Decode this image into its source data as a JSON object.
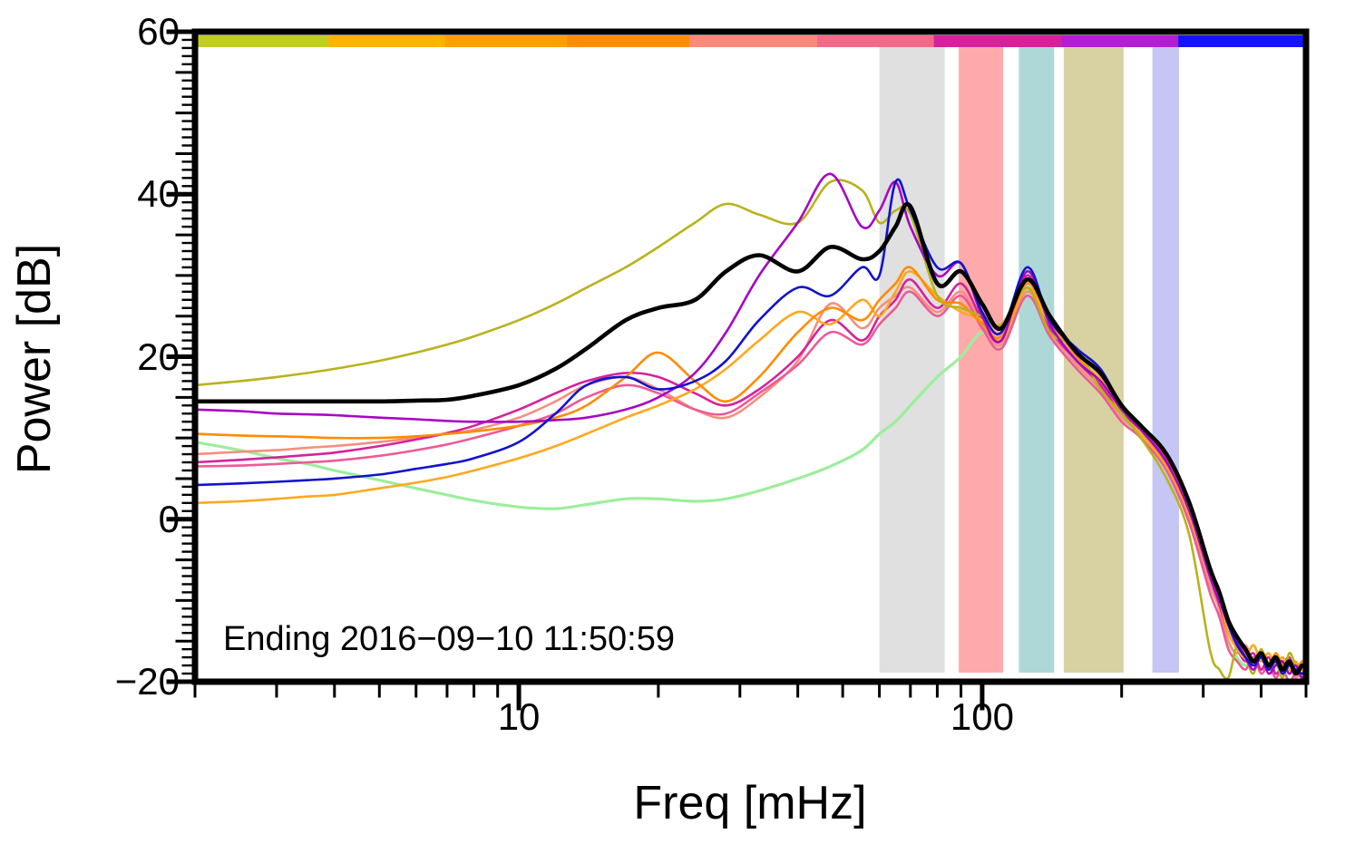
{
  "chart_data": {
    "type": "line",
    "title": "",
    "xlabel": "Freq [mHz]",
    "ylabel": "Power [dB]",
    "annotation": "Ending 2016−09−10 11:50:59",
    "x_scale": "log",
    "xlim": [
      2,
      500
    ],
    "ylim": [
      -20,
      60
    ],
    "grid": false,
    "legend": "none",
    "x_ticks": [
      {
        "value": 10,
        "label": "10"
      },
      {
        "value": 100,
        "label": "100"
      }
    ],
    "y_ticks": [
      {
        "value": 60,
        "label": "60"
      },
      {
        "value": 40,
        "label": "40"
      },
      {
        "value": 20,
        "label": "20"
      },
      {
        "value": 0,
        "label": "0"
      },
      {
        "value": -20,
        "label": "−20"
      }
    ],
    "bands": [
      {
        "from_mhz": 60,
        "to_mhz": 83,
        "color": "#e0e0e0"
      },
      {
        "from_mhz": 89,
        "to_mhz": 111,
        "color": "#ffaaaa"
      },
      {
        "from_mhz": 120,
        "to_mhz": 143,
        "color": "#aed8d8"
      },
      {
        "from_mhz": 150,
        "to_mhz": 202,
        "color": "#d8d2a2"
      },
      {
        "from_mhz": 233,
        "to_mhz": 266,
        "color": "#c6c6f4"
      }
    ],
    "colorbar_segments": [
      {
        "color": "#c2cd21",
        "from": 0.0,
        "to": 0.12
      },
      {
        "color": "#ffb300",
        "from": 0.12,
        "to": 0.225
      },
      {
        "color": "#ffa000",
        "from": 0.225,
        "to": 0.335
      },
      {
        "color": "#ff8d00",
        "from": 0.335,
        "to": 0.445
      },
      {
        "color": "#f9897b",
        "from": 0.445,
        "to": 0.56
      },
      {
        "color": "#f26a88",
        "from": 0.56,
        "to": 0.665
      },
      {
        "color": "#d6219c",
        "from": 0.665,
        "to": 0.78
      },
      {
        "color": "#b31ed2",
        "from": 0.78,
        "to": 0.885
      },
      {
        "color": "#1414ff",
        "from": 0.885,
        "to": 1.0
      }
    ],
    "x": [
      2,
      2.5,
      3,
      3.5,
      4,
      5,
      6,
      7,
      8,
      10,
      12,
      14,
      17,
      20,
      24,
      28,
      33,
      40,
      47,
      55,
      60,
      65,
      70,
      80,
      90,
      100,
      110,
      125,
      140,
      160,
      180,
      200,
      220,
      250,
      280,
      310,
      325,
      340,
      355,
      370,
      385,
      400,
      415,
      430,
      445,
      460,
      475,
      490,
      500
    ],
    "series": [
      {
        "name": "green",
        "color": "#9cee9c",
        "width": 3.2,
        "values": [
          9.5,
          8.5,
          7.5,
          6.8,
          6,
          4.8,
          3.8,
          3,
          2.3,
          1.5,
          1.3,
          1.8,
          2.5,
          2.5,
          2.2,
          2.5,
          3.5,
          5,
          6.5,
          8.5,
          10.5,
          12,
          14,
          17.5,
          20,
          23,
          21,
          27.5,
          23,
          19,
          16,
          12.5,
          10,
          6,
          0,
          -8,
          -11,
          -15,
          -17,
          -18,
          -17,
          -18.5,
          -17.5,
          -19,
          -18,
          -19,
          -18.5,
          -19.5,
          -19
        ]
      },
      {
        "name": "salmon",
        "color": "#f58f7f",
        "width": 2.6,
        "values": [
          8,
          8.3,
          8.5,
          8.8,
          9,
          9.5,
          10,
          10.5,
          11,
          12.5,
          14.5,
          16.5,
          17.5,
          16,
          13.5,
          12.5,
          15,
          19.5,
          26.5,
          23.5,
          26,
          27.5,
          28.5,
          25.5,
          28,
          24,
          21.5,
          28,
          23,
          19,
          16,
          12.5,
          10.5,
          6.5,
          0,
          -8,
          -11,
          -15,
          -16.5,
          -15.5,
          -17.5,
          -16.5,
          -18.5,
          -17.5,
          -19,
          -18,
          -19.5,
          -18.5,
          -19.5
        ]
      },
      {
        "name": "pink",
        "color": "#ee5a96",
        "width": 2.6,
        "values": [
          6.5,
          6.6,
          6.8,
          7,
          7.2,
          7.8,
          8.5,
          9.2,
          10,
          11.5,
          13,
          15,
          16.5,
          15.5,
          13.5,
          13,
          15.5,
          19,
          23,
          21.5,
          24,
          26,
          28,
          25,
          27.5,
          23.5,
          21,
          27.5,
          22.5,
          18.5,
          15.5,
          12,
          10,
          6,
          -0.5,
          -9,
          -12,
          -16,
          -17.5,
          -18.5,
          -17,
          -19,
          -18,
          -19.5,
          -18.5,
          -20,
          -19,
          -19.5,
          -19
        ]
      },
      {
        "name": "magenta",
        "color": "#d6219c",
        "width": 2.6,
        "values": [
          7,
          7.3,
          7.6,
          7.9,
          8.2,
          9,
          9.8,
          10.6,
          11.5,
          13.5,
          15.5,
          17,
          18,
          17.5,
          15.5,
          14,
          16,
          20,
          24.5,
          22,
          25,
          27,
          29.5,
          26,
          29,
          24.5,
          22,
          30,
          23.5,
          19.5,
          16.5,
          13,
          11,
          7.5,
          1,
          -7,
          -10.5,
          -14,
          -16,
          -17.5,
          -16.5,
          -18.5,
          -17,
          -19,
          -18,
          -17,
          -19,
          -18,
          -18.5
        ]
      },
      {
        "name": "orange-light",
        "color": "#ffa81e",
        "width": 2.6,
        "values": [
          2,
          2.2,
          2.5,
          2.8,
          3,
          3.8,
          4.5,
          5.2,
          6,
          7.5,
          9,
          10.5,
          12.5,
          14,
          16,
          18.5,
          22,
          25.5,
          24,
          27,
          25,
          28,
          30.5,
          27.5,
          25.5,
          24.5,
          22,
          28.5,
          24,
          20.5,
          17.5,
          13,
          10.5,
          6.5,
          0.5,
          -7,
          -10,
          -14,
          -16,
          -17,
          -15.5,
          -17.5,
          -16.5,
          -18,
          -17,
          -18.5,
          -17.5,
          -19,
          -18
        ]
      },
      {
        "name": "orange",
        "color": "#ff8c00",
        "width": 2.6,
        "values": [
          10.5,
          10.3,
          10.2,
          10.1,
          10,
          10,
          10.2,
          10.5,
          10.8,
          11.5,
          12.5,
          14,
          17.5,
          20.5,
          17,
          14.5,
          17.5,
          23,
          26,
          24.5,
          27,
          29,
          31,
          27,
          26.5,
          24,
          22.5,
          29,
          24.5,
          20,
          17,
          13.5,
          11,
          7,
          1.5,
          -6,
          -9.5,
          -13,
          -15,
          -16.5,
          -18,
          -17,
          -18.5,
          -16.5,
          -18,
          -17.5,
          -18.5,
          -17.5,
          -18
        ]
      },
      {
        "name": "olive",
        "color": "#b9b21b",
        "width": 2.6,
        "values": [
          16.5,
          17,
          17.5,
          18,
          18.5,
          19.5,
          20.5,
          21.5,
          22.5,
          24.5,
          26.5,
          28.5,
          31,
          33.5,
          36.5,
          38.8,
          37.5,
          36.5,
          41.5,
          40.5,
          36.5,
          38,
          37.5,
          27.5,
          26,
          25,
          24,
          28.5,
          23,
          21,
          16,
          13,
          10,
          5,
          -2,
          -16,
          -18.5,
          -19.5,
          -15.5,
          -17,
          -19,
          -16,
          -18.5,
          -17.5,
          -19.5,
          -16.5,
          -18,
          -19,
          -18.5
        ]
      },
      {
        "name": "purple",
        "color": "#a607c4",
        "width": 2.6,
        "values": [
          13.5,
          13.3,
          13,
          12.9,
          12.8,
          12.5,
          12.3,
          12.1,
          12,
          12,
          12.2,
          12.5,
          13.5,
          15,
          18,
          23,
          30,
          36.5,
          42.5,
          36,
          38,
          41.5,
          36,
          30,
          31.5,
          25,
          22,
          30.5,
          24,
          19.5,
          17,
          13.5,
          11,
          7,
          1,
          -7,
          -10,
          -13,
          -15,
          -17,
          -18.5,
          -17,
          -19,
          -18,
          -17.5,
          -19,
          -18,
          -19.5,
          -19
        ]
      },
      {
        "name": "blue",
        "color": "#1212cc",
        "width": 2.6,
        "values": [
          4.2,
          4.4,
          4.6,
          4.8,
          5,
          5.5,
          6.2,
          6.8,
          7.5,
          9.5,
          13,
          16.5,
          17.5,
          16,
          17,
          19.5,
          24.5,
          28.5,
          27.5,
          31,
          30,
          41.5,
          38,
          31,
          31.5,
          25.5,
          23,
          31,
          24.5,
          21,
          18.5,
          14,
          11.5,
          8,
          2,
          -6,
          -9,
          -13,
          -15.5,
          -17,
          -18,
          -17,
          -18.5,
          -17.5,
          -19,
          -18,
          -18.5,
          -19,
          -18.5
        ]
      },
      {
        "name": "mean-black",
        "color": "#000000",
        "width": 4.6,
        "values": [
          14.5,
          14.5,
          14.5,
          14.5,
          14.5,
          14.5,
          14.6,
          14.7,
          15.2,
          16.5,
          18.5,
          21,
          24.5,
          26,
          27,
          30.5,
          32.5,
          30.5,
          33.5,
          32,
          33,
          36,
          38.5,
          29,
          30.5,
          26.5,
          23.5,
          29.5,
          25,
          20.5,
          18,
          14,
          11.5,
          8,
          2,
          -6,
          -9,
          -12.5,
          -14.5,
          -16,
          -17.5,
          -16.5,
          -18,
          -17,
          -18.5,
          -17.5,
          -19,
          -18,
          -18.5
        ]
      }
    ]
  }
}
